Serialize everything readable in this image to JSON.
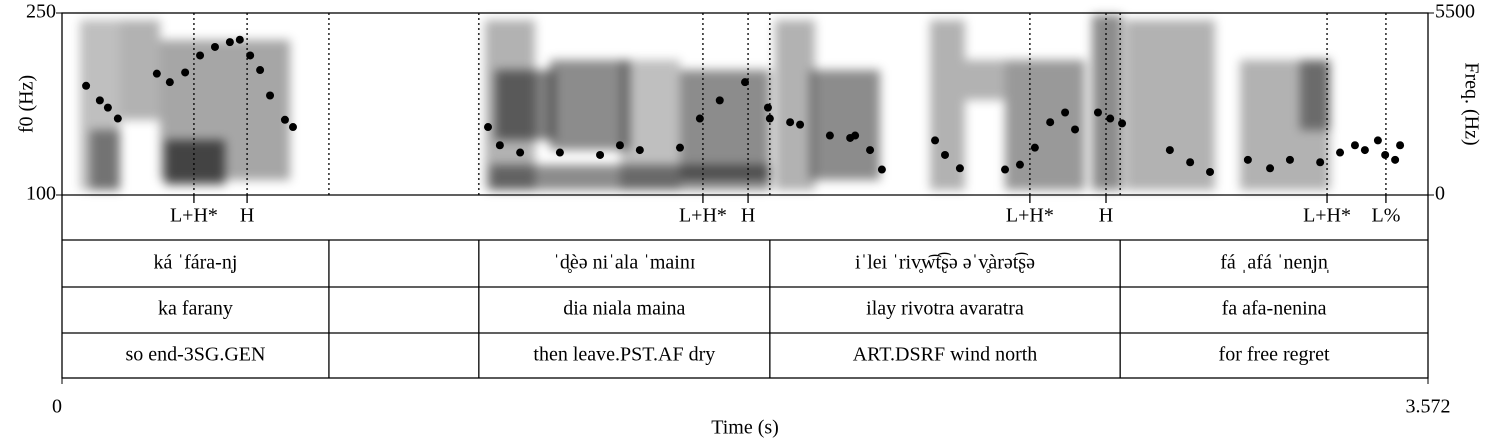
{
  "chart_data": {
    "type": "scatter",
    "ylabel": "f0 (Hz)",
    "y2label": "Freq. (Hz)",
    "xlabel": "Time (s)",
    "xlim": [
      0,
      3.572
    ],
    "xticks": [
      0,
      3.572
    ],
    "ylim": [
      100,
      250
    ],
    "yticks": [
      100,
      250
    ],
    "y2lim": [
      0,
      5500
    ],
    "y2ticks": [
      0,
      5500
    ],
    "series": [
      {
        "color": "#000000",
        "x": [
          0.063,
          0.099,
          0.12,
          0.146,
          0.248,
          0.282,
          0.322,
          0.361,
          0.4,
          0.439,
          0.465,
          0.492,
          0.518,
          0.544,
          0.583,
          0.604,
          1.114,
          1.145,
          1.198,
          1.302,
          1.407,
          1.459,
          1.511,
          1.616,
          1.668,
          1.72,
          1.786,
          1.846,
          1.851,
          1.904,
          1.93,
          2.008,
          2.061,
          2.074,
          2.113,
          2.144,
          2.283,
          2.309,
          2.348,
          2.466,
          2.505,
          2.544,
          2.584,
          2.623,
          2.649,
          2.709,
          2.741,
          2.772,
          2.897,
          2.95,
          3.002,
          3.101,
          3.159,
          3.211,
          3.29,
          3.342,
          3.381,
          3.407,
          3.441,
          3.46,
          3.486,
          3.499
        ],
        "values": [
          190,
          178,
          172,
          163,
          200,
          193,
          201,
          215,
          222,
          226,
          228,
          215,
          203,
          182,
          162,
          156,
          156,
          141,
          135,
          135,
          133,
          141,
          137,
          139,
          163,
          178,
          193,
          172,
          163,
          160,
          158,
          149,
          147,
          149,
          137,
          121,
          145,
          133,
          122,
          121,
          125,
          139,
          160,
          168,
          154,
          168,
          163,
          159,
          137,
          127,
          119,
          129,
          122,
          129,
          127,
          135,
          141,
          137,
          145,
          133,
          129,
          141
        ]
      }
    ],
    "tone_tier": {
      "labels": [
        "L+H*",
        "H",
        "L+H*",
        "H",
        "L+H*",
        "H",
        "L+H*",
        "L%"
      ],
      "times": [
        0.345,
        0.484,
        1.676,
        1.794,
        2.531,
        2.73,
        3.308,
        3.462
      ]
    },
    "boundaries": [
      0.698,
      1.09,
      1.851,
      2.767
    ],
    "interval_tiers": [
      [
        "ká ˈfára-n̩j",
        null,
        "ˈd̥èə niˈala ˈmainɪ",
        "iˈlei ˈriv̥w͡t͡ʂə əˈv̥àrət͡ʂə",
        "fá ˌafá ˈnen̩jn̩"
      ],
      [
        "ka farany",
        null,
        "dia niala maina",
        "ilay rivotra avaratra",
        "fa afa-nenina"
      ],
      [
        "so end-3SG.GEN",
        null,
        "then leave.PST.AF dry",
        "ART.DSRF wind north",
        "for free regret"
      ]
    ]
  }
}
